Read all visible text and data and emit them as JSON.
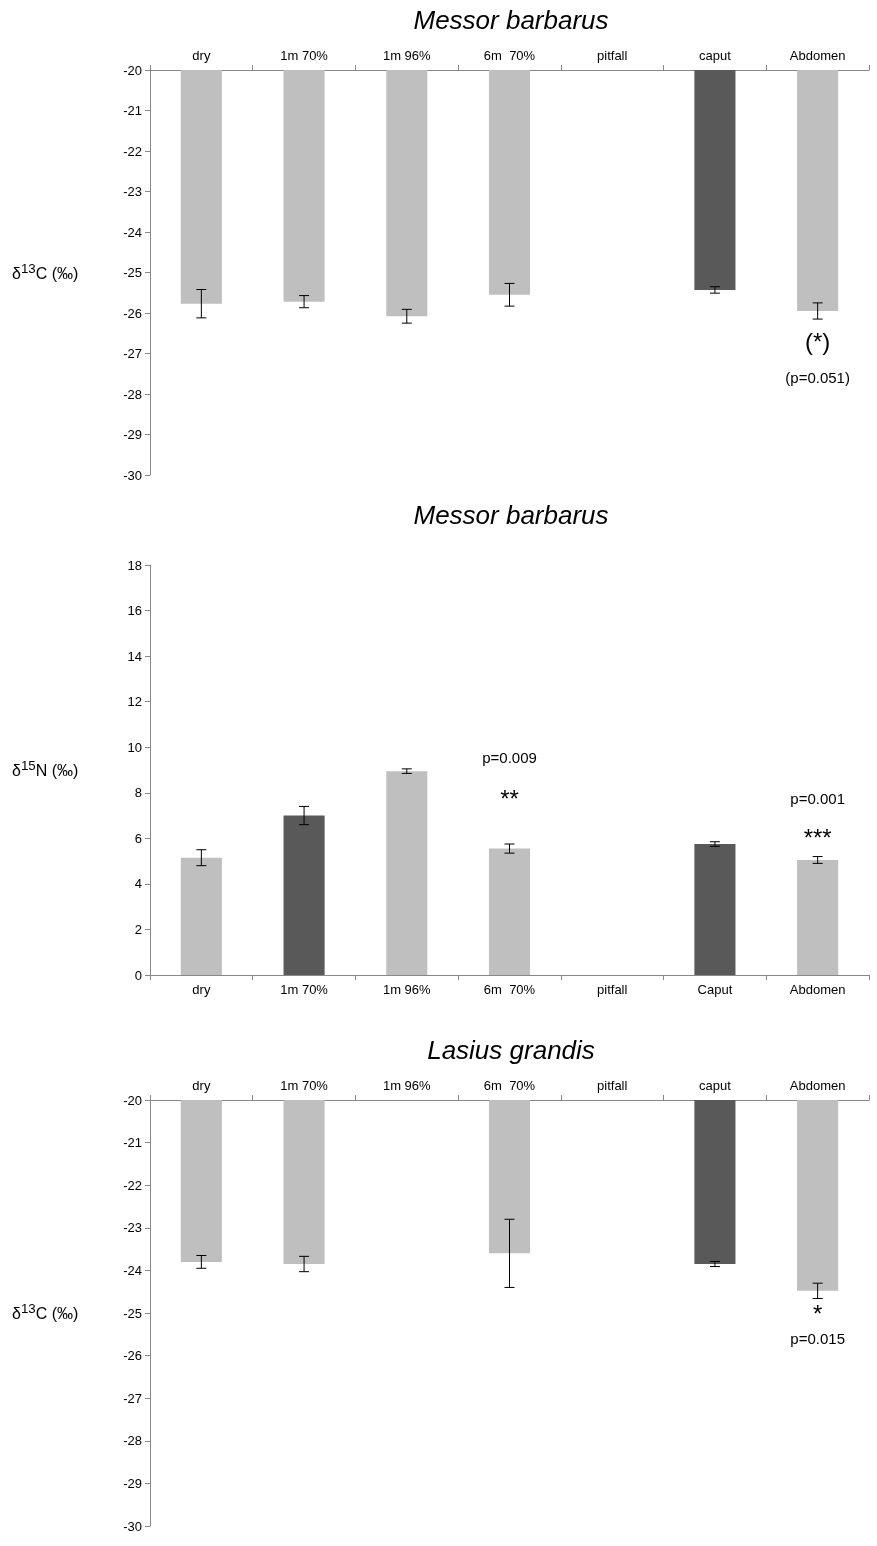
{
  "chart_data": [
    {
      "type": "bar",
      "title": "Messor barbarus",
      "ylabel": "δ$^{13}$C (‰)",
      "categories": [
        "dry",
        "1m 70%",
        "1m 96%",
        "6m  70%",
        "pitfall",
        "caput",
        "Abdomen"
      ],
      "values": [
        -25.77,
        -25.72,
        -26.08,
        -25.55,
        null,
        -25.43,
        -25.95
      ],
      "errors": [
        0.35,
        0.15,
        0.17,
        0.28,
        null,
        0.08,
        0.2
      ],
      "colors": [
        "#bfbfbf",
        "#bfbfbf",
        "#bfbfbf",
        "#bfbfbf",
        "#bfbfbf",
        "#595959",
        "#bfbfbf"
      ],
      "ylim": [
        -30,
        -20
      ],
      "yticks": [
        -30,
        -29,
        -28,
        -27,
        -26,
        -25,
        -24,
        -23,
        -22,
        -21,
        -20
      ],
      "grid": false,
      "annotations": [
        "(*)",
        "(p=0.051)"
      ]
    },
    {
      "type": "bar",
      "title": "Messor barbarus",
      "ylabel": "δ$^{15}$N (‰)",
      "categories": [
        "dry",
        "1m 70%",
        "1m 96%",
        "6m  70%",
        "pitfall",
        "Caput",
        "Abdomen"
      ],
      "values": [
        5.15,
        7.0,
        8.95,
        5.55,
        null,
        5.75,
        5.05
      ],
      "errors": [
        0.35,
        0.4,
        0.1,
        0.2,
        null,
        0.1,
        0.15
      ],
      "colors": [
        "#bfbfbf",
        "#595959",
        "#bfbfbf",
        "#bfbfbf",
        "#bfbfbf",
        "#595959",
        "#bfbfbf"
      ],
      "ylim": [
        0,
        18
      ],
      "yticks": [
        0,
        2,
        4,
        6,
        8,
        10,
        12,
        14,
        16,
        18
      ],
      "grid": false,
      "annotations": [
        "p=0.009",
        "**",
        "p=0.001",
        "***"
      ]
    },
    {
      "type": "bar",
      "title": "Lasius grandis",
      "ylabel": "δ$^{13}$C (‰)",
      "categories": [
        "dry",
        "1m 70%",
        "1m 96%",
        "6m  70%",
        "pitfall",
        "caput",
        "Abdomen"
      ],
      "values": [
        -23.8,
        -23.85,
        null,
        -23.6,
        null,
        -23.85,
        -24.48
      ],
      "errors": [
        0.15,
        0.18,
        null,
        0.8,
        null,
        0.06,
        0.18
      ],
      "colors": [
        "#bfbfbf",
        "#bfbfbf",
        "#bfbfbf",
        "#bfbfbf",
        "#bfbfbf",
        "#595959",
        "#bfbfbf"
      ],
      "ylim": [
        -30,
        -20
      ],
      "yticks": [
        -30,
        -29,
        -28,
        -27,
        -26,
        -25,
        -24,
        -23,
        -22,
        -21,
        -20
      ],
      "grid": false,
      "annotations": [
        "*",
        "p=0.015"
      ]
    }
  ]
}
